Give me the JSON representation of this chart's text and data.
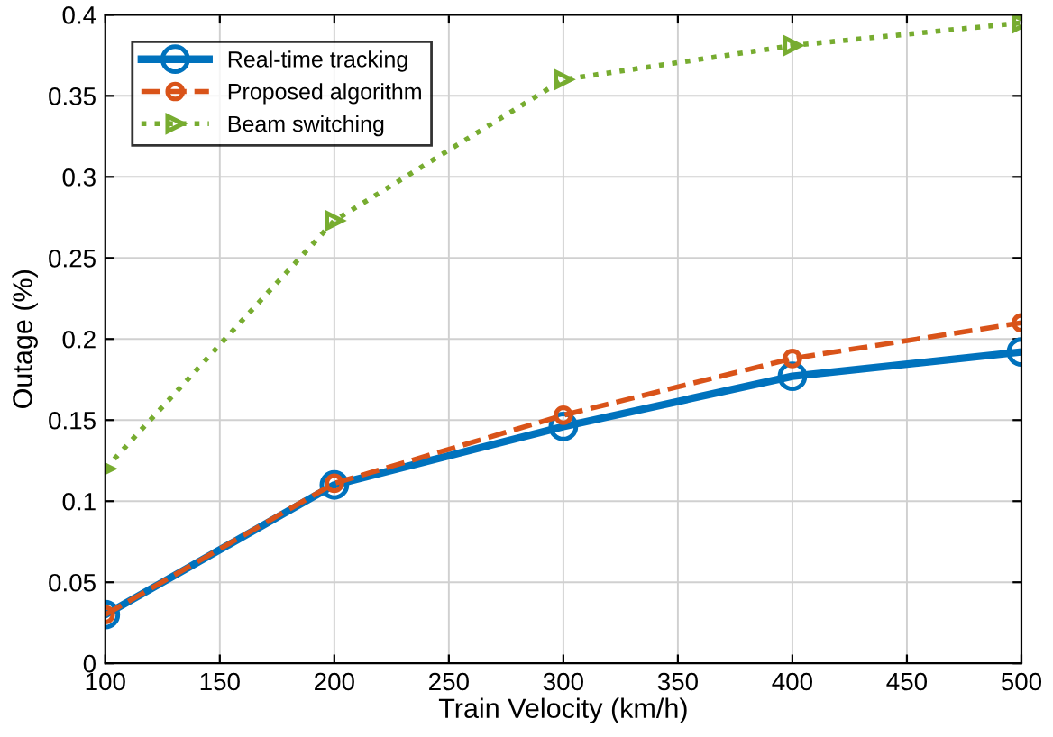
{
  "chart_data": {
    "type": "line",
    "xlabel": "Train Velocity (km/h)",
    "ylabel": "Outage (%)",
    "x": [
      100,
      200,
      300,
      400,
      500
    ],
    "series": [
      {
        "name": "Real-time tracking",
        "color": "#0072bd",
        "values": [
          0.03,
          0.11,
          0.146,
          0.177,
          0.192
        ],
        "marker": "circle",
        "line_style": "solid"
      },
      {
        "name": "Proposed algorithm",
        "color": "#d95319",
        "values": [
          0.03,
          0.111,
          0.153,
          0.188,
          0.21
        ],
        "marker": "circle",
        "line_style": "dashed"
      },
      {
        "name": "Beam switching",
        "color": "#77ac30",
        "values": [
          0.12,
          0.273,
          0.36,
          0.381,
          0.395
        ],
        "marker": "triangle",
        "line_style": "dotted"
      }
    ],
    "xlim": [
      100,
      500
    ],
    "xticks": [
      100,
      150,
      200,
      250,
      300,
      350,
      400,
      450,
      500
    ],
    "ylim": [
      0,
      0.4
    ],
    "yticks": [
      0,
      0.05,
      0.1,
      0.15,
      0.2,
      0.25,
      0.3,
      0.35,
      0.4
    ],
    "grid": true,
    "legend": "top left"
  }
}
